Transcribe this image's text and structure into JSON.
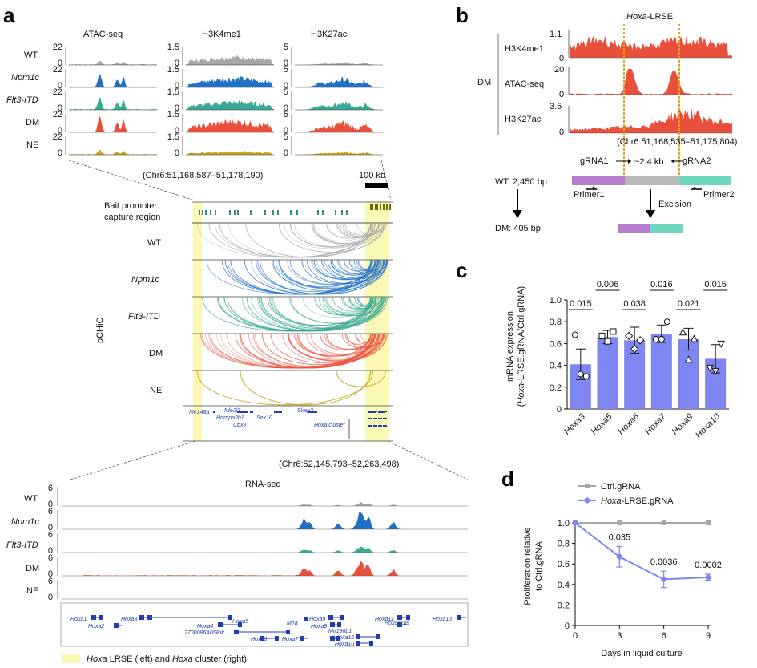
{
  "panel_labels": {
    "a": "a",
    "b": "b",
    "c": "c",
    "d": "d"
  },
  "colors": {
    "wt": "#a7a7a7",
    "npm1c": "#1f6fc4",
    "flt3": "#3aa894",
    "dm": "#e8503b",
    "ne": "#c9a41a",
    "highlight": "#fbf7b5",
    "bar": "#7f86f2",
    "gene": "#1f3fae",
    "orange": "#e6a21a",
    "purple": "#b57bcc",
    "teal": "#6fd6c1",
    "grey": "#b8b8b8"
  },
  "panel_a": {
    "track_headers": [
      "ATAC-seq",
      "H3K4me1",
      "H3K27ac"
    ],
    "rows": [
      {
        "name": "WT",
        "italic": false
      },
      {
        "name": "Npm1c",
        "italic": true
      },
      {
        "name": "Flt3-ITD",
        "italic": true
      },
      {
        "name": "DM",
        "italic": false
      },
      {
        "name": "NE",
        "italic": false
      }
    ],
    "scales": {
      "top": [
        "22",
        "1.5",
        "5"
      ],
      "bottom": "0"
    },
    "coord_top": "(Chr6:51,168,587–51,178,190)",
    "scale_bar": "100 kb",
    "bait_label": [
      "Bait promoter",
      "capture region"
    ],
    "pchic_label": "pCHiC",
    "genes_mid": [
      "Mir148a",
      "Nfe2l3",
      "Hnrnpa2b1",
      "Cbx3",
      "Snx10",
      "Skap2",
      "Hoxa cluster"
    ],
    "coord_bottom": "(Chr6:52,145,793–52,263,498)",
    "rnaseq_title": "RNA-seq",
    "rna_scale": {
      "top": "6",
      "bottom": "0"
    },
    "genes_bottom_row1": [
      "Hoxa1",
      "Hoxa3",
      "Hoxa5",
      "Hoxa9",
      "Hoxa11",
      "Hoxa13"
    ],
    "genes_bottom_row2": [
      "Hoxa2",
      "Hoxa4",
      "Mira",
      "Hoxa9",
      "Hoxa11os"
    ],
    "genes_bottom_row3": [
      "2700086A05Rik",
      "Hoxa6",
      "Hoxa7",
      "Mir196b1",
      "Hoxa10",
      "Hoxa10"
    ],
    "legend_parts": [
      "Hoxa",
      " LRSE (left) and ",
      "Hoxa",
      " cluster (right)"
    ]
  },
  "panel_b": {
    "title_parts": [
      "Hoxa",
      "-LRSE"
    ],
    "group": "DM",
    "tracks": [
      {
        "name": "H3K4me1",
        "top": "1.1",
        "bottom": "0"
      },
      {
        "name": "ATAC-seq",
        "top": "20",
        "bottom": "0"
      },
      {
        "name": "H3K27ac",
        "top": "3.5",
        "bottom": "0"
      }
    ],
    "coord": "(Chr6:51,168,535–51,175,804)",
    "grna1": "gRNA1",
    "grna2": "gRNA2",
    "distance": "~2.4 kb",
    "wt_label": "WT: 2,450 bp",
    "dm_label": "DM: 405 bp",
    "primer1": "Primer1",
    "primer2": "Primer2",
    "excision": "Excision"
  },
  "panel_c": {
    "ylabel_line1": "mRNA expression",
    "ylabel_line2_parts": [
      "(",
      "Hoxa",
      "-LRSE.gRNA/Ctrl.gRNA)"
    ]
  },
  "panel_d": {
    "ylabel": [
      "Proliferation relative",
      "to Ctrl.gRNA"
    ]
  },
  "chart_data": [
    {
      "type": "bar",
      "title": "",
      "categories": [
        "Hoxa3",
        "Hoxa5",
        "Hoxa6",
        "Hoxa7",
        "Hoxa9",
        "Hoxa10"
      ],
      "values": [
        0.41,
        0.66,
        0.63,
        0.69,
        0.64,
        0.46
      ],
      "errors": [
        0.14,
        0.06,
        0.12,
        0.08,
        0.1,
        0.13
      ],
      "points": [
        [
          0.68,
          0.32,
          0.3
        ],
        [
          0.67,
          0.62,
          0.71
        ],
        [
          0.67,
          0.55,
          0.63
        ],
        [
          0.64,
          0.64,
          0.8
        ],
        [
          0.7,
          0.45,
          0.64
        ],
        [
          0.38,
          0.35,
          0.6
        ]
      ],
      "markers": [
        "circle",
        "square",
        "diamond",
        "circle",
        "triangle",
        "triangle-down"
      ],
      "pvalues": [
        "0.015",
        "0.006",
        "0.038",
        "0.016",
        "0.021",
        "0.015"
      ],
      "ylim": [
        0,
        1.0
      ],
      "yticks": [
        "0",
        "0.2",
        "0.4",
        "0.6",
        "0.8",
        "1.0"
      ],
      "xlabel": "",
      "ylabel": "mRNA expression (Hoxa-LRSE.gRNA/Ctrl.gRNA)"
    },
    {
      "type": "line",
      "x": [
        0,
        3,
        6,
        9
      ],
      "xticks": [
        "0",
        "3",
        "6",
        "9"
      ],
      "yticks": [
        "0",
        "0.2",
        "0.4",
        "0.6",
        "0.8",
        "1.0"
      ],
      "series": [
        {
          "name": "Ctrl.gRNA",
          "values": [
            1.0,
            1.0,
            1.0,
            1.0
          ],
          "errors": [
            0,
            0,
            0,
            0
          ]
        },
        {
          "name": "Hoxa-LRSE.gRNA",
          "values": [
            1.0,
            0.67,
            0.45,
            0.47
          ],
          "errors": [
            0,
            0.1,
            0.08,
            0.03
          ]
        }
      ],
      "pvalues": [
        "0.035",
        "0.0036",
        "0.0002"
      ],
      "legend_items": [
        "Ctrl.gRNA",
        [
          "Hoxa",
          "-LRSE.gRNA"
        ]
      ],
      "xlabel": "Days in liquid culture",
      "ylabel": "Proliferation relative to Ctrl.gRNA",
      "xlim": [
        0,
        9
      ],
      "ylim": [
        0,
        1.0
      ]
    }
  ]
}
